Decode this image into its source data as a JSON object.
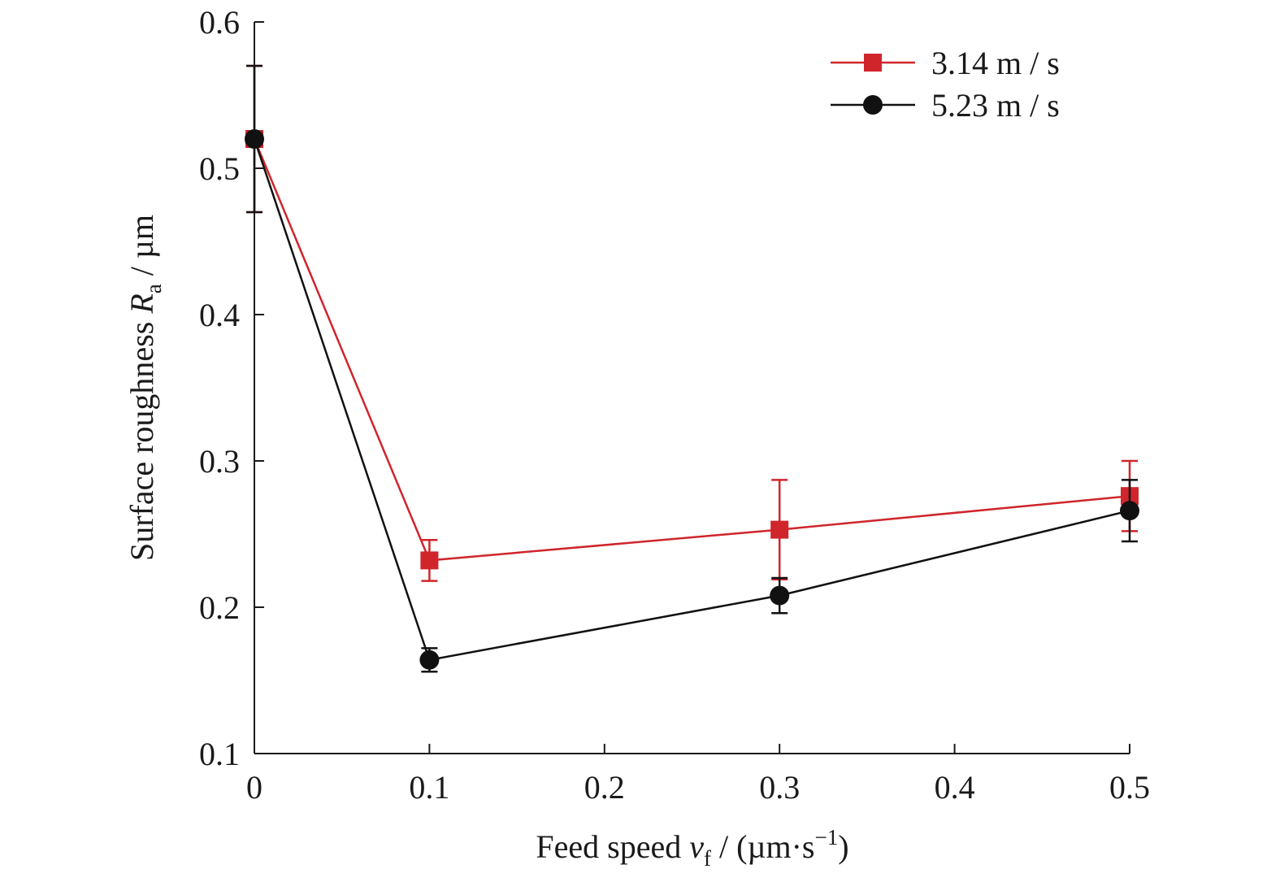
{
  "chart_data": {
    "type": "line",
    "x_ticks": [
      "0",
      "0.1",
      "0.2",
      "0.3",
      "0.4",
      "0.5"
    ],
    "y_ticks": [
      "0.1",
      "0.2",
      "0.3",
      "0.4",
      "0.5",
      "0.6"
    ],
    "xlim": [
      0,
      0.5
    ],
    "ylim": [
      0.1,
      0.6
    ],
    "grid": false,
    "legend_position": "top-right",
    "xlabel": {
      "pre": "Feed speed ",
      "var": "v",
      "sub": "f",
      "post": " / (µm·s",
      "sup": "−1",
      "end": ")"
    },
    "ylabel": {
      "pre": "Surface roughness ",
      "var": "R",
      "sub": "a",
      "post": " / µm"
    },
    "series": [
      {
        "name": "3.14 m / s",
        "color": "#d0252b",
        "marker": "square",
        "points": [
          {
            "x": 0,
            "y": 0.52,
            "err": 0.05
          },
          {
            "x": 0.1,
            "y": 0.232,
            "err": 0.014
          },
          {
            "x": 0.3,
            "y": 0.253,
            "err": 0.034
          },
          {
            "x": 0.5,
            "y": 0.276,
            "err": 0.024
          }
        ]
      },
      {
        "name": "5.23 m / s",
        "color": "#111111",
        "marker": "circle",
        "points": [
          {
            "x": 0,
            "y": 0.52,
            "err": 0.05
          },
          {
            "x": 0.1,
            "y": 0.164,
            "err": 0.008
          },
          {
            "x": 0.3,
            "y": 0.208,
            "err": 0.012
          },
          {
            "x": 0.5,
            "y": 0.266,
            "err": 0.021
          }
        ]
      }
    ]
  }
}
